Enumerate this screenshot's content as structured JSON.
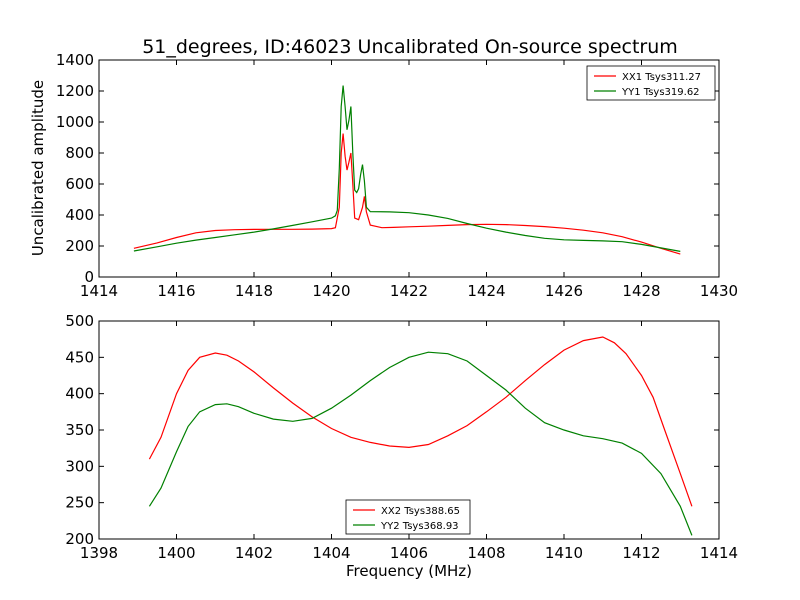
{
  "title": "51_degrees, ID:46023 Uncalibrated On-source spectrum",
  "chart_data": [
    {
      "type": "line",
      "ylabel": "Uncalibrated amplitude",
      "xlabel": "",
      "xlim": [
        1414,
        1430
      ],
      "ylim": [
        0,
        1400
      ],
      "xticks": [
        "1414",
        "1416",
        "1418",
        "1420",
        "1422",
        "1424",
        "1426",
        "1428",
        "1430"
      ],
      "yticks": [
        "0",
        "200",
        "400",
        "600",
        "800",
        "1000",
        "1200",
        "1400"
      ],
      "legend_position": "top-right",
      "series": [
        {
          "name": "XX1 Tsys311.27",
          "color": "#ff0000",
          "points": [
            [
              1414.9,
              185
            ],
            [
              1415.5,
              220
            ],
            [
              1416.0,
              255
            ],
            [
              1416.5,
              285
            ],
            [
              1417.0,
              300
            ],
            [
              1417.5,
              305
            ],
            [
              1418.0,
              307
            ],
            [
              1418.5,
              308
            ],
            [
              1419.0,
              308
            ],
            [
              1419.5,
              309
            ],
            [
              1420.0,
              312
            ],
            [
              1420.1,
              318
            ],
            [
              1420.2,
              450
            ],
            [
              1420.25,
              800
            ],
            [
              1420.3,
              925
            ],
            [
              1420.35,
              780
            ],
            [
              1420.4,
              690
            ],
            [
              1420.45,
              740
            ],
            [
              1420.5,
              800
            ],
            [
              1420.55,
              600
            ],
            [
              1420.6,
              380
            ],
            [
              1420.7,
              370
            ],
            [
              1420.8,
              450
            ],
            [
              1420.85,
              520
            ],
            [
              1420.9,
              420
            ],
            [
              1421.0,
              335
            ],
            [
              1421.3,
              318
            ],
            [
              1421.6,
              320
            ],
            [
              1422.0,
              324
            ],
            [
              1422.5,
              328
            ],
            [
              1423.0,
              333
            ],
            [
              1423.5,
              338
            ],
            [
              1424.0,
              340
            ],
            [
              1424.5,
              338
            ],
            [
              1425.0,
              332
            ],
            [
              1425.5,
              325
            ],
            [
              1426.0,
              315
            ],
            [
              1426.5,
              302
            ],
            [
              1427.0,
              285
            ],
            [
              1427.5,
              260
            ],
            [
              1428.0,
              225
            ],
            [
              1428.5,
              185
            ],
            [
              1429.0,
              148
            ]
          ]
        },
        {
          "name": "YY1 Tsys319.62",
          "color": "#008000",
          "points": [
            [
              1414.9,
              168
            ],
            [
              1415.5,
              195
            ],
            [
              1416.0,
              218
            ],
            [
              1416.5,
              238
            ],
            [
              1417.0,
              255
            ],
            [
              1417.5,
              272
            ],
            [
              1418.0,
              290
            ],
            [
              1418.5,
              310
            ],
            [
              1419.0,
              333
            ],
            [
              1419.5,
              356
            ],
            [
              1420.0,
              380
            ],
            [
              1420.1,
              395
            ],
            [
              1420.15,
              430
            ],
            [
              1420.2,
              700
            ],
            [
              1420.25,
              1100
            ],
            [
              1420.3,
              1235
            ],
            [
              1420.35,
              1100
            ],
            [
              1420.4,
              950
            ],
            [
              1420.45,
              1010
            ],
            [
              1420.5,
              1100
            ],
            [
              1420.55,
              800
            ],
            [
              1420.6,
              560
            ],
            [
              1420.65,
              545
            ],
            [
              1420.7,
              570
            ],
            [
              1420.75,
              660
            ],
            [
              1420.8,
              725
            ],
            [
              1420.85,
              620
            ],
            [
              1420.9,
              450
            ],
            [
              1421.0,
              422
            ],
            [
              1421.5,
              420
            ],
            [
              1422.0,
              415
            ],
            [
              1422.5,
              400
            ],
            [
              1423.0,
              378
            ],
            [
              1423.5,
              345
            ],
            [
              1424.0,
              315
            ],
            [
              1424.5,
              290
            ],
            [
              1425.0,
              268
            ],
            [
              1425.5,
              250
            ],
            [
              1426.0,
              240
            ],
            [
              1426.5,
              236
            ],
            [
              1427.0,
              233
            ],
            [
              1427.5,
              228
            ],
            [
              1428.0,
              210
            ],
            [
              1428.5,
              188
            ],
            [
              1429.0,
              165
            ]
          ]
        }
      ]
    },
    {
      "type": "line",
      "ylabel": "",
      "xlabel": "Frequency (MHz)",
      "xlim": [
        1398,
        1414
      ],
      "ylim": [
        200,
        500
      ],
      "xticks": [
        "1398",
        "1400",
        "1402",
        "1404",
        "1406",
        "1408",
        "1410",
        "1412",
        "1414"
      ],
      "yticks": [
        "200",
        "250",
        "300",
        "350",
        "400",
        "450",
        "500"
      ],
      "legend_position": "bottom-center",
      "series": [
        {
          "name": "XX2 Tsys388.65",
          "color": "#ff0000",
          "points": [
            [
              1399.3,
              310
            ],
            [
              1399.6,
              340
            ],
            [
              1400.0,
              400
            ],
            [
              1400.3,
              432
            ],
            [
              1400.6,
              450
            ],
            [
              1401.0,
              456
            ],
            [
              1401.3,
              453
            ],
            [
              1401.6,
              445
            ],
            [
              1402.0,
              430
            ],
            [
              1402.5,
              408
            ],
            [
              1403.0,
              387
            ],
            [
              1403.5,
              368
            ],
            [
              1404.0,
              352
            ],
            [
              1404.5,
              340
            ],
            [
              1405.0,
              333
            ],
            [
              1405.5,
              328
            ],
            [
              1406.0,
              326
            ],
            [
              1406.5,
              330
            ],
            [
              1407.0,
              342
            ],
            [
              1407.5,
              356
            ],
            [
              1408.0,
              375
            ],
            [
              1408.5,
              395
            ],
            [
              1409.0,
              418
            ],
            [
              1409.5,
              440
            ],
            [
              1410.0,
              460
            ],
            [
              1410.5,
              473
            ],
            [
              1411.0,
              478
            ],
            [
              1411.3,
              470
            ],
            [
              1411.6,
              455
            ],
            [
              1412.0,
              425
            ],
            [
              1412.3,
              395
            ],
            [
              1412.6,
              350
            ],
            [
              1413.0,
              290
            ],
            [
              1413.3,
              245
            ]
          ]
        },
        {
          "name": "YY2 Tsys368.93",
          "color": "#008000",
          "points": [
            [
              1399.3,
              245
            ],
            [
              1399.6,
              270
            ],
            [
              1400.0,
              320
            ],
            [
              1400.3,
              355
            ],
            [
              1400.6,
              375
            ],
            [
              1401.0,
              385
            ],
            [
              1401.3,
              386
            ],
            [
              1401.6,
              382
            ],
            [
              1402.0,
              373
            ],
            [
              1402.5,
              365
            ],
            [
              1403.0,
              362
            ],
            [
              1403.5,
              366
            ],
            [
              1404.0,
              380
            ],
            [
              1404.5,
              398
            ],
            [
              1405.0,
              418
            ],
            [
              1405.5,
              436
            ],
            [
              1406.0,
              450
            ],
            [
              1406.5,
              457
            ],
            [
              1407.0,
              455
            ],
            [
              1407.5,
              445
            ],
            [
              1408.0,
              425
            ],
            [
              1408.5,
              405
            ],
            [
              1409.0,
              380
            ],
            [
              1409.5,
              360
            ],
            [
              1410.0,
              350
            ],
            [
              1410.5,
              342
            ],
            [
              1411.0,
              338
            ],
            [
              1411.5,
              332
            ],
            [
              1412.0,
              318
            ],
            [
              1412.5,
              290
            ],
            [
              1413.0,
              245
            ],
            [
              1413.3,
              205
            ]
          ]
        }
      ]
    }
  ]
}
